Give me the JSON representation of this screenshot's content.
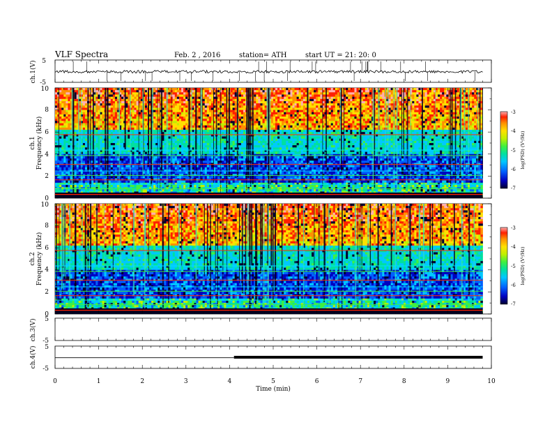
{
  "header": {
    "title": "VLF  Spectra",
    "date": "Feb. 2  , 2016",
    "station": "station= ATH",
    "start": "start  UT  =   21: 20: 0"
  },
  "chart_data": [
    {
      "type": "line",
      "panel": "ch1",
      "ylabel": "ch.1(V)",
      "ylim": [
        -5,
        5
      ],
      "y_ticks": [
        "5",
        "-5"
      ],
      "baseline_value": -0.5,
      "color": "#000000"
    },
    {
      "type": "heatmap",
      "panel": "ch1-spectrogram",
      "ylabel": "Frequency (kHz)",
      "channel_label": "ch.1",
      "ylim": [
        0,
        10
      ],
      "y_ticks": [
        "0",
        "2",
        "4",
        "6",
        "8",
        "10"
      ],
      "colorbar": {
        "label": "log(PSD) (V²/Hz)",
        "range": [
          -7,
          -3
        ],
        "ticks": [
          "-3",
          "-4",
          "-5",
          "-6",
          "-7"
        ]
      }
    },
    {
      "type": "heatmap",
      "panel": "ch2-spectrogram",
      "ylabel": "Frequency (kHz)",
      "channel_label": "ch.2",
      "ylim": [
        0,
        10
      ],
      "y_ticks": [
        "0",
        "2",
        "4",
        "6",
        "8",
        "10"
      ],
      "colorbar": {
        "label": "log(PSD) (V²/Hz)",
        "range": [
          -7,
          -3
        ],
        "ticks": [
          "-3",
          "-4",
          "-5",
          "-6",
          "-7"
        ]
      }
    },
    {
      "type": "line",
      "panel": "ch3",
      "ylabel": "ch.3(V)",
      "ylim": [
        -5,
        5
      ],
      "y_ticks": [
        "5",
        "-5"
      ]
    },
    {
      "type": "line",
      "panel": "ch4",
      "ylabel": "ch.4(V)",
      "ylim": [
        -5,
        5
      ],
      "y_ticks": [
        "5",
        "-5"
      ],
      "segments": [
        {
          "x_start": 0.0,
          "x_end": 4.1,
          "value": -0.3
        },
        {
          "x_start": 4.1,
          "x_end": 9.8,
          "value": 0.0
        }
      ]
    }
  ],
  "x_axis": {
    "label": "Time  (min)",
    "xlim": [
      0,
      10
    ],
    "ticks": [
      "0",
      "1",
      "2",
      "3",
      "4",
      "5",
      "6",
      "7",
      "8",
      "9",
      "10"
    ]
  },
  "colormap": [
    "#000030",
    "#0000c0",
    "#0060ff",
    "#00c8ff",
    "#00e0a0",
    "#40f040",
    "#c0f000",
    "#ffe000",
    "#ff9000",
    "#ff2000",
    "#ffb0b0"
  ]
}
